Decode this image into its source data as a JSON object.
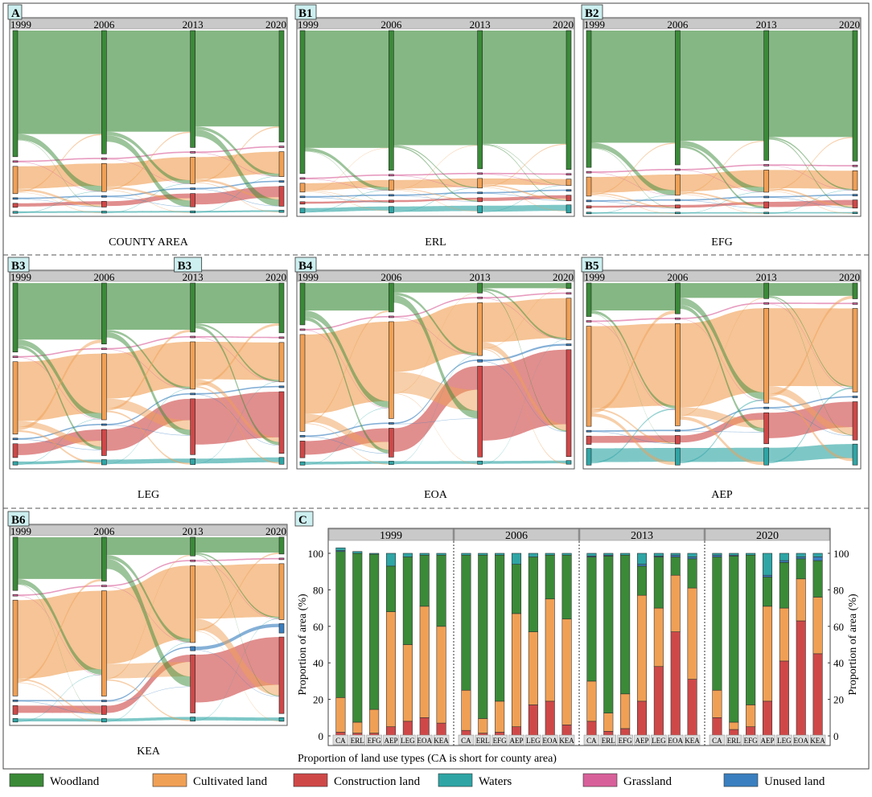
{
  "colors": {
    "Woodland": "#3a8a38",
    "Cultivated land": "#f0a055",
    "Construction land": "#cf4848",
    "Waters": "#2fa5a5",
    "Grassland": "#d8609a",
    "Unused land": "#3a7fbf"
  },
  "panel_C_label": "C",
  "categories_order": [
    "Woodland",
    "Cultivated land",
    "Construction land",
    "Waters",
    "Grassland",
    "Unused land"
  ],
  "legend": [
    {
      "name": "Woodland",
      "color": "#3a8a38"
    },
    {
      "name": "Cultivated land",
      "color": "#f0a055"
    },
    {
      "name": "Construction land",
      "color": "#cf4848"
    },
    {
      "name": "Waters",
      "color": "#2fa5a5"
    },
    {
      "name": "Grassland",
      "color": "#d8609a"
    },
    {
      "name": "Unused land",
      "color": "#3a7fbf"
    }
  ],
  "chart_data": [
    {
      "id": "A",
      "type": "sankey",
      "title": "COUNTY AREA",
      "x": [
        "1999",
        "2006",
        "2013",
        "2020"
      ],
      "proportions": {
        "Woodland": [
          78.5,
          74.5,
          70,
          67
        ],
        "Grassland": [
          0.6,
          0.6,
          0.6,
          0.6
        ],
        "Cultivated land": [
          17,
          17,
          16,
          15
        ],
        "Unused land": [
          0.3,
          0.4,
          0.5,
          0.8
        ],
        "Construction land": [
          2.5,
          3.5,
          8,
          12
        ],
        "Waters": [
          1.2,
          1.2,
          1.2,
          1.3
        ]
      }
    },
    {
      "id": "B1",
      "type": "sankey",
      "title": "ERL",
      "x": [
        "1999",
        "2006",
        "2013",
        "2020"
      ],
      "proportions": {
        "Woodland": [
          89,
          87,
          86,
          86
        ],
        "Grassland": [
          0.8,
          0.8,
          0.8,
          0.8
        ],
        "Cultivated land": [
          5.5,
          6.5,
          6,
          4
        ],
        "Unused land": [
          0.3,
          0.3,
          0.3,
          0.3
        ],
        "Construction land": [
          1.5,
          1.5,
          2.5,
          3.5
        ],
        "Waters": [
          3,
          4,
          4.5,
          5
        ]
      }
    },
    {
      "id": "B2",
      "type": "sankey",
      "title": "EFG",
      "x": [
        "1999",
        "2006",
        "2013",
        "2020"
      ],
      "proportions": {
        "Woodland": [
          86,
          84,
          82,
          80
        ],
        "Grassland": [
          0.7,
          0.7,
          0.7,
          0.7
        ],
        "Cultivated land": [
          12,
          13,
          14,
          12
        ],
        "Unused land": [
          0.3,
          0.3,
          0.3,
          0.3
        ],
        "Construction land": [
          1.5,
          2,
          4,
          5
        ],
        "Waters": [
          0.6,
          0.6,
          0.6,
          0.6
        ]
      }
    },
    {
      "id": "B3",
      "type": "sankey",
      "title": "LEG",
      "x": [
        "1999",
        "2006",
        "2013",
        "2020"
      ],
      "proportions": {
        "Woodland": [
          40,
          35,
          29,
          29
        ],
        "Grassland": [
          0.8,
          0.8,
          0.8,
          0.8
        ],
        "Cultivated land": [
          42,
          38,
          28,
          23
        ],
        "Unused land": [
          0.5,
          0.6,
          0.8,
          1
        ],
        "Construction land": [
          8,
          15,
          33,
          36
        ],
        "Waters": [
          2,
          3,
          3.5,
          4
        ]
      }
    },
    {
      "id": "B4",
      "type": "sankey",
      "title": "EOA",
      "x": [
        "1999",
        "2006",
        "2013",
        "2020"
      ],
      "proportions": {
        "Woodland": [
          25,
          17,
          6,
          3
        ],
        "Grassland": [
          0.8,
          0.8,
          0.8,
          0.8
        ],
        "Cultivated land": [
          58,
          57,
          32,
          23
        ],
        "Unused land": [
          0.5,
          0.8,
          1.5,
          1
        ],
        "Construction land": [
          10,
          17,
          55,
          59
        ],
        "Waters": [
          2,
          2,
          2,
          2
        ]
      }
    },
    {
      "id": "B5",
      "type": "sankey",
      "title": "AEP",
      "x": [
        "1999",
        "2006",
        "2013",
        "2020"
      ],
      "proportions": {
        "Woodland": [
          20,
          18,
          9,
          9
        ],
        "Grassland": [
          0.8,
          0.8,
          0.8,
          0.8
        ],
        "Cultivated land": [
          60,
          60,
          55,
          48
        ],
        "Unused land": [
          0.5,
          0.5,
          0.5,
          0.5
        ],
        "Construction land": [
          5,
          5,
          18,
          22
        ],
        "Waters": [
          10,
          10,
          10,
          12
        ]
      }
    },
    {
      "id": "B6",
      "type": "sankey",
      "title": "KEA",
      "x": [
        "1999",
        "2006",
        "2013",
        "2020"
      ],
      "proportions": {
        "Woodland": [
          30,
          25,
          9,
          9
        ],
        "Grassland": [
          0.5,
          0.5,
          0.5,
          0.5
        ],
        "Cultivated land": [
          54,
          60,
          37,
          30
        ],
        "Unused land": [
          0.5,
          0.5,
          2,
          5
        ],
        "Construction land": [
          5,
          5,
          28,
          41
        ],
        "Waters": [
          2,
          2,
          2,
          2
        ]
      }
    },
    {
      "id": "C",
      "type": "stacked-bar",
      "xlabel": "Proportion of land use types (CA is short for county area)",
      "ylabel": "Proportion of  area (%)",
      "ylim": [
        0,
        100
      ],
      "yticks": [
        0,
        20,
        40,
        60,
        80,
        100
      ],
      "years": [
        "1999",
        "2006",
        "2013",
        "2020"
      ],
      "categories": [
        "CA",
        "ERL",
        "EFG",
        "AEP",
        "LEG",
        "EOA",
        "KEA"
      ],
      "series_order": [
        "Construction land",
        "Cultivated land",
        "Woodland",
        "Unused land",
        "Waters"
      ],
      "values": {
        "1999": {
          "CA": [
            2,
            19,
            80,
            0.5,
            1.5
          ],
          "ERL": [
            1.5,
            6,
            92.5,
            0,
            1
          ],
          "EFG": [
            1.5,
            13,
            85,
            0,
            0.5
          ],
          "AEP": [
            5,
            63,
            25,
            0,
            7
          ],
          "LEG": [
            8,
            42,
            48,
            0,
            2
          ],
          "EOA": [
            10,
            61,
            28,
            0,
            1
          ],
          "KEA": [
            7,
            53,
            39,
            0,
            1
          ]
        },
        "2006": {
          "CA": [
            3,
            22,
            74,
            0,
            1
          ],
          "ERL": [
            1.5,
            8,
            89.5,
            0,
            1
          ],
          "EFG": [
            2,
            17,
            80,
            0,
            1
          ],
          "AEP": [
            5,
            62,
            27,
            0,
            6
          ],
          "LEG": [
            17,
            40,
            41,
            0,
            2
          ],
          "EOA": [
            19,
            56,
            24,
            0,
            1
          ],
          "KEA": [
            6,
            58,
            35,
            0,
            1
          ]
        },
        "2013": {
          "CA": [
            8,
            22,
            68,
            0.5,
            1.5
          ],
          "ERL": [
            2.5,
            10,
            86,
            0.5,
            1
          ],
          "EFG": [
            4,
            19,
            76,
            0,
            1
          ],
          "AEP": [
            19,
            58,
            16,
            1,
            6
          ],
          "LEG": [
            38,
            32,
            28,
            0.5,
            1.5
          ],
          "EOA": [
            57,
            31,
            10,
            1,
            1
          ],
          "KEA": [
            31,
            50,
            16,
            1,
            2
          ]
        },
        "2020": {
          "CA": [
            10,
            15,
            73,
            1,
            1
          ],
          "ERL": [
            3.5,
            4,
            91,
            0.5,
            1
          ],
          "EFG": [
            5,
            12,
            82,
            0,
            1
          ],
          "AEP": [
            19,
            52,
            16,
            1,
            12
          ],
          "LEG": [
            41,
            29,
            25,
            1,
            4
          ],
          "EOA": [
            63,
            23,
            11,
            1,
            2
          ],
          "KEA": [
            45,
            31,
            20,
            2,
            2
          ]
        }
      }
    }
  ]
}
